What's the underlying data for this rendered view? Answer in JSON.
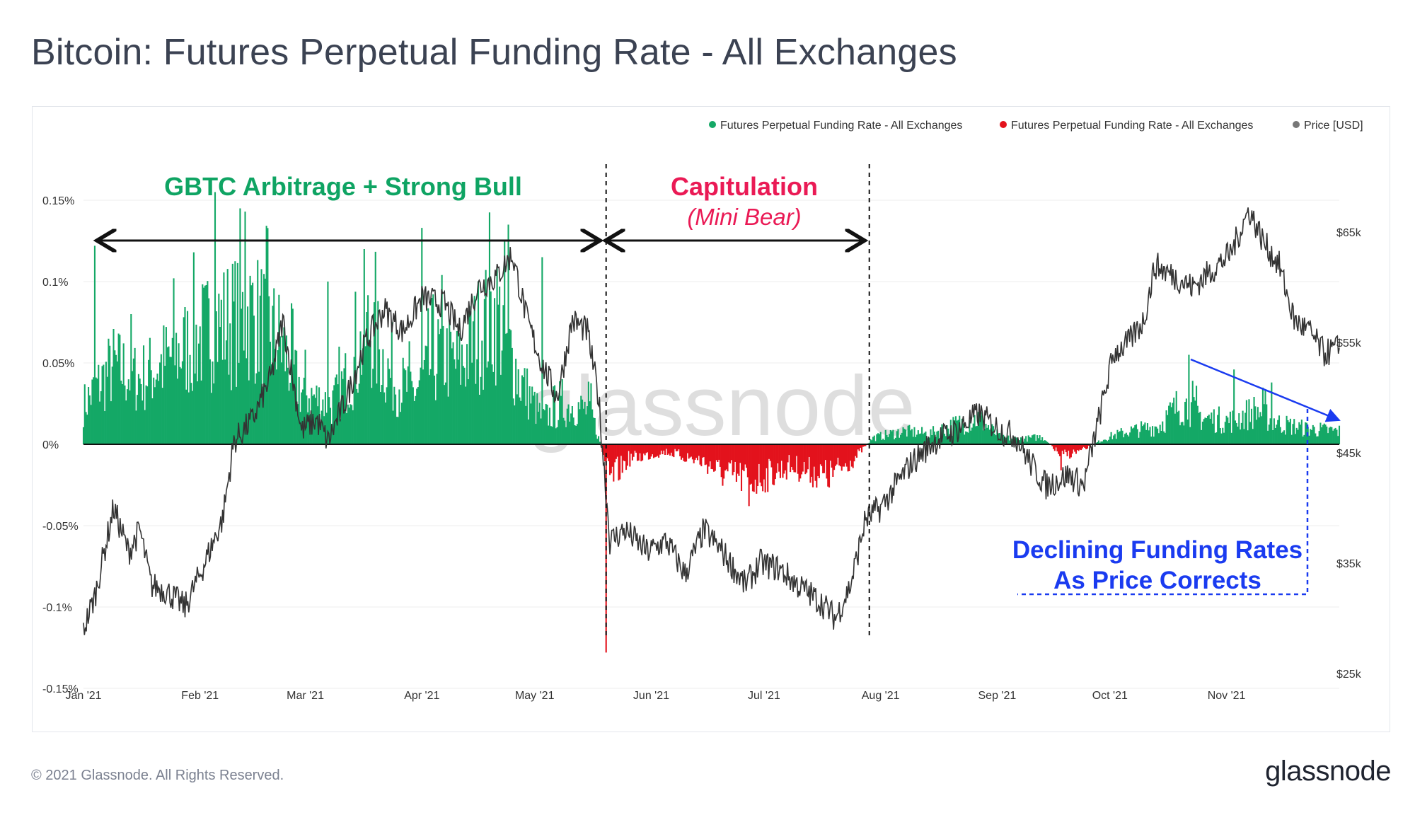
{
  "title": "Bitcoin: Futures Perpetual Funding Rate - All Exchanges",
  "footer": "© 2021 Glassnode. All Rights Reserved.",
  "brand": "glassnode",
  "watermark": "glassnode",
  "colors": {
    "positive": "#14a866",
    "negative": "#e3121c",
    "price": "#444444",
    "green_text": "#0fa463",
    "red_text": "#ea1a55",
    "blue": "#1a3bf0"
  },
  "chart_data": {
    "type": "area",
    "title": "Bitcoin: Futures Perpetual Funding Rate - All Exchanges",
    "legend": [
      {
        "label": "Futures Perpetual Funding Rate - All Exchanges",
        "color": "#14a866"
      },
      {
        "label": "Futures Perpetual Funding Rate - All Exchanges",
        "color": "#e3121c"
      },
      {
        "label": "Price [USD]",
        "color": "#777777"
      }
    ],
    "x_ticks": [
      "Jan '21",
      "Feb '21",
      "Mar '21",
      "Apr '21",
      "May '21",
      "Jun '21",
      "Jul '21",
      "Aug '21",
      "Sep '21",
      "Oct '21",
      "Nov '21"
    ],
    "y_left": {
      "ticks": [
        "0.15%",
        "0.1%",
        "0.05%",
        "0%",
        "-0.05%",
        "-0.1%",
        "-0.15%"
      ],
      "values": [
        0.15,
        0.1,
        0.05,
        0,
        -0.05,
        -0.1,
        -0.15
      ],
      "range": [
        -0.15,
        0.155
      ]
    },
    "y_right": {
      "ticks": [
        "$65k",
        "$55k",
        "$45k",
        "$35k",
        "$25k"
      ],
      "values": [
        65000,
        55000,
        45000,
        35000,
        25000
      ],
      "range": [
        25000,
        65000
      ]
    },
    "x_range_days": [
      0,
      334
    ],
    "funding_anchors": [
      {
        "day": 0,
        "value": 0.03
      },
      {
        "day": 8,
        "value": 0.06
      },
      {
        "day": 15,
        "value": 0.05
      },
      {
        "day": 25,
        "value": 0.07
      },
      {
        "day": 35,
        "value": 0.09
      },
      {
        "day": 45,
        "value": 0.1
      },
      {
        "day": 52,
        "value": 0.08
      },
      {
        "day": 58,
        "value": 0.04
      },
      {
        "day": 66,
        "value": 0.03
      },
      {
        "day": 72,
        "value": 0.06
      },
      {
        "day": 76,
        "value": 0.09
      },
      {
        "day": 82,
        "value": 0.05
      },
      {
        "day": 88,
        "value": 0.04
      },
      {
        "day": 95,
        "value": 0.07
      },
      {
        "day": 100,
        "value": 0.06
      },
      {
        "day": 106,
        "value": 0.09
      },
      {
        "day": 110,
        "value": 0.1
      },
      {
        "day": 116,
        "value": 0.05
      },
      {
        "day": 122,
        "value": 0.02
      },
      {
        "day": 130,
        "value": 0.03
      },
      {
        "day": 135,
        "value": 0.025
      },
      {
        "day": 140,
        "value": -0.025
      },
      {
        "day": 145,
        "value": -0.01
      },
      {
        "day": 155,
        "value": -0.005
      },
      {
        "day": 165,
        "value": -0.012
      },
      {
        "day": 170,
        "value": -0.02
      },
      {
        "day": 178,
        "value": -0.025
      },
      {
        "day": 188,
        "value": -0.015
      },
      {
        "day": 198,
        "value": -0.022
      },
      {
        "day": 205,
        "value": -0.01
      },
      {
        "day": 210,
        "value": 0.005
      },
      {
        "day": 218,
        "value": 0.01
      },
      {
        "day": 225,
        "value": 0.008
      },
      {
        "day": 232,
        "value": 0.015
      },
      {
        "day": 238,
        "value": 0.02
      },
      {
        "day": 244,
        "value": 0.005
      },
      {
        "day": 250,
        "value": 0.004
      },
      {
        "day": 255,
        "value": 0.006
      },
      {
        "day": 260,
        "value": -0.008
      },
      {
        "day": 266,
        "value": -0.004
      },
      {
        "day": 272,
        "value": 0.005
      },
      {
        "day": 278,
        "value": 0.01
      },
      {
        "day": 286,
        "value": 0.014
      },
      {
        "day": 292,
        "value": 0.032
      },
      {
        "day": 298,
        "value": 0.02
      },
      {
        "day": 305,
        "value": 0.018
      },
      {
        "day": 312,
        "value": 0.026
      },
      {
        "day": 318,
        "value": 0.016
      },
      {
        "day": 325,
        "value": 0.012
      },
      {
        "day": 334,
        "value": 0.01
      }
    ],
    "funding_spikes": [
      {
        "day": 3,
        "value": 0.122
      },
      {
        "day": 35,
        "value": 0.155
      },
      {
        "day": 43,
        "value": 0.143
      },
      {
        "day": 65,
        "value": 0.1
      },
      {
        "day": 90,
        "value": 0.133
      },
      {
        "day": 113,
        "value": 0.135
      },
      {
        "day": 122,
        "value": 0.115
      },
      {
        "day": 139,
        "value": -0.128
      },
      {
        "day": 177,
        "value": -0.038
      },
      {
        "day": 260,
        "value": -0.016
      },
      {
        "day": 294,
        "value": 0.055
      },
      {
        "day": 306,
        "value": 0.046
      },
      {
        "day": 316,
        "value": 0.038
      }
    ],
    "price_anchors": [
      {
        "day": 0,
        "value": 29000
      },
      {
        "day": 3,
        "value": 32000
      },
      {
        "day": 8,
        "value": 40000
      },
      {
        "day": 12,
        "value": 36000
      },
      {
        "day": 15,
        "value": 38000
      },
      {
        "day": 18,
        "value": 33000
      },
      {
        "day": 22,
        "value": 32500
      },
      {
        "day": 27,
        "value": 31000
      },
      {
        "day": 31,
        "value": 34000
      },
      {
        "day": 37,
        "value": 39000
      },
      {
        "day": 40,
        "value": 46000
      },
      {
        "day": 45,
        "value": 48000
      },
      {
        "day": 50,
        "value": 52000
      },
      {
        "day": 53,
        "value": 57000
      },
      {
        "day": 58,
        "value": 47000
      },
      {
        "day": 62,
        "value": 48000
      },
      {
        "day": 65,
        "value": 46000
      },
      {
        "day": 70,
        "value": 50000
      },
      {
        "day": 75,
        "value": 55000
      },
      {
        "day": 80,
        "value": 58000
      },
      {
        "day": 85,
        "value": 56000
      },
      {
        "day": 90,
        "value": 59000
      },
      {
        "day": 96,
        "value": 58500
      },
      {
        "day": 100,
        "value": 56000
      },
      {
        "day": 105,
        "value": 60000
      },
      {
        "day": 110,
        "value": 61000
      },
      {
        "day": 114,
        "value": 63000
      },
      {
        "day": 118,
        "value": 57000
      },
      {
        "day": 122,
        "value": 53000
      },
      {
        "day": 126,
        "value": 50000
      },
      {
        "day": 130,
        "value": 57000
      },
      {
        "day": 134,
        "value": 56000
      },
      {
        "day": 137,
        "value": 50000
      },
      {
        "day": 140,
        "value": 37000
      },
      {
        "day": 144,
        "value": 38000
      },
      {
        "day": 150,
        "value": 36000
      },
      {
        "day": 155,
        "value": 37000
      },
      {
        "day": 160,
        "value": 34000
      },
      {
        "day": 165,
        "value": 38000
      },
      {
        "day": 170,
        "value": 36000
      },
      {
        "day": 176,
        "value": 33000
      },
      {
        "day": 180,
        "value": 35000
      },
      {
        "day": 185,
        "value": 34500
      },
      {
        "day": 190,
        "value": 33000
      },
      {
        "day": 196,
        "value": 31500
      },
      {
        "day": 200,
        "value": 30000
      },
      {
        "day": 204,
        "value": 33000
      },
      {
        "day": 208,
        "value": 39000
      },
      {
        "day": 212,
        "value": 40000
      },
      {
        "day": 216,
        "value": 42000
      },
      {
        "day": 220,
        "value": 44000
      },
      {
        "day": 226,
        "value": 46000
      },
      {
        "day": 232,
        "value": 47000
      },
      {
        "day": 238,
        "value": 48500
      },
      {
        "day": 244,
        "value": 47000
      },
      {
        "day": 248,
        "value": 46500
      },
      {
        "day": 252,
        "value": 44000
      },
      {
        "day": 256,
        "value": 42000
      },
      {
        "day": 262,
        "value": 43000
      },
      {
        "day": 266,
        "value": 42000
      },
      {
        "day": 270,
        "value": 48000
      },
      {
        "day": 274,
        "value": 54000
      },
      {
        "day": 278,
        "value": 55000
      },
      {
        "day": 282,
        "value": 57000
      },
      {
        "day": 285,
        "value": 62000
      },
      {
        "day": 290,
        "value": 61000
      },
      {
        "day": 295,
        "value": 60000
      },
      {
        "day": 300,
        "value": 61500
      },
      {
        "day": 305,
        "value": 63000
      },
      {
        "day": 310,
        "value": 67000
      },
      {
        "day": 314,
        "value": 64000
      },
      {
        "day": 318,
        "value": 62000
      },
      {
        "day": 322,
        "value": 57000
      },
      {
        "day": 326,
        "value": 56000
      },
      {
        "day": 330,
        "value": 54000
      },
      {
        "day": 334,
        "value": 54500
      }
    ],
    "annotations": [
      {
        "id": "gbtc",
        "text": "GBTC Arbitrage + Strong Bull",
        "color": "#0fa463"
      },
      {
        "id": "capitulation",
        "text": "Capitulation",
        "color": "#ea1a55"
      },
      {
        "id": "mini_bear",
        "text": "(Mini Bear)",
        "color": "#ea1a55"
      },
      {
        "id": "declining_1",
        "text": "Declining Funding Rates",
        "color": "#1a3bf0"
      },
      {
        "id": "declining_2",
        "text": "As Price Corrects",
        "color": "#1a3bf0"
      }
    ],
    "regime_boundaries_days": [
      139,
      209
    ]
  }
}
